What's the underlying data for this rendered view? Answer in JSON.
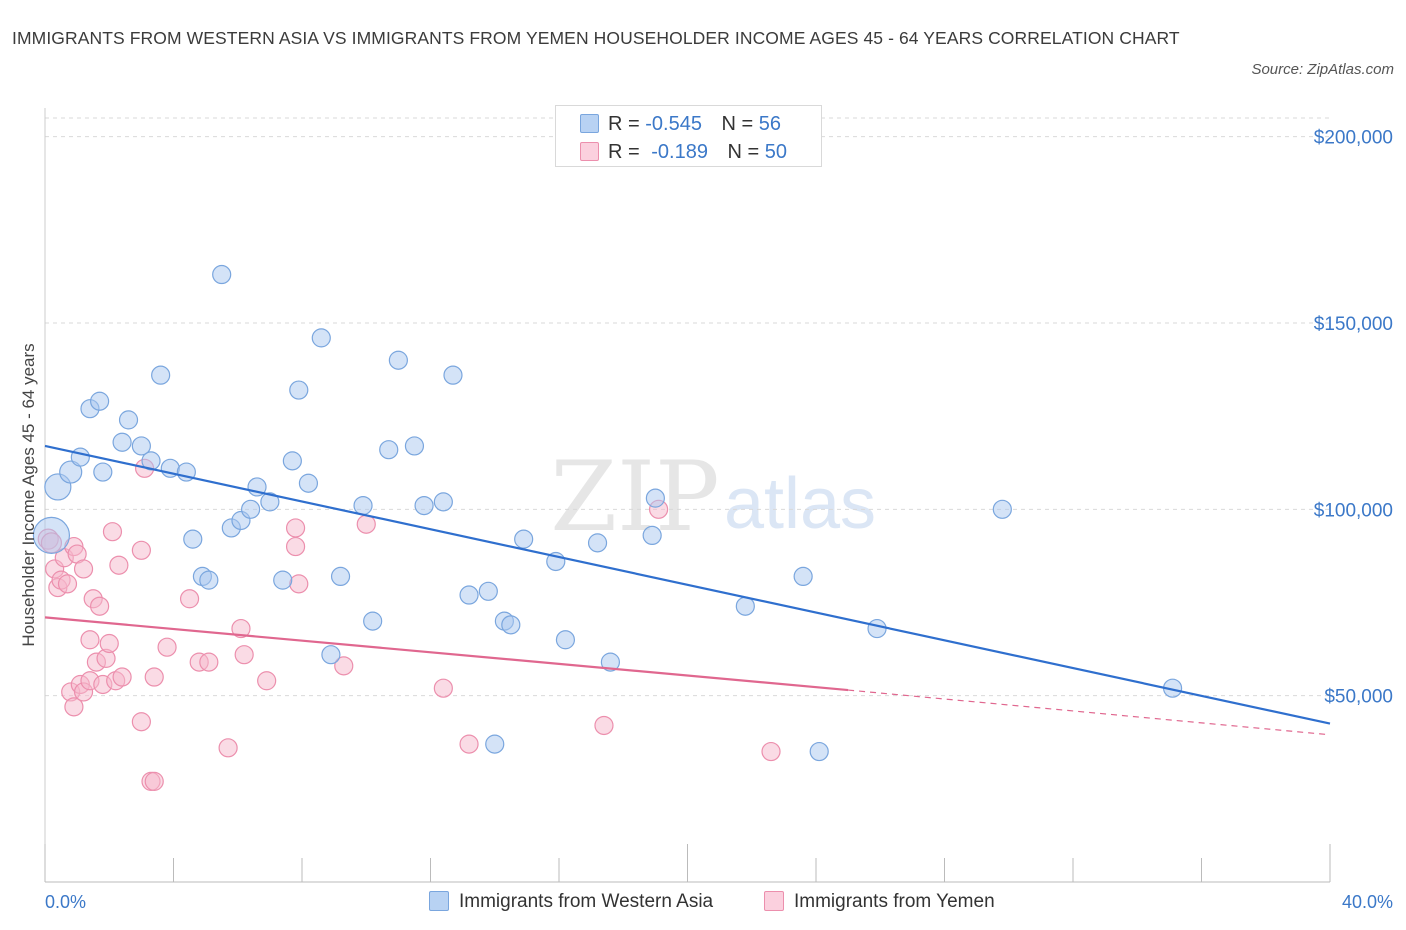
{
  "header": {
    "title": "IMMIGRANTS FROM WESTERN ASIA VS IMMIGRANTS FROM YEMEN HOUSEHOLDER INCOME AGES 45 - 64 YEARS CORRELATION CHART",
    "source": "Source: ZipAtlas.com"
  },
  "watermark": {
    "zip": "ZIP",
    "atlas": "atlas"
  },
  "legend": {
    "r_label": "R =",
    "n_label": "N =",
    "rows": [
      {
        "r": "-0.545",
        "n": "56"
      },
      {
        "r": "-0.189",
        "n": "50"
      }
    ]
  },
  "colors": {
    "blue_fill": "#a9c8f0",
    "blue_stroke": "#7aa6de",
    "blue_line": "#2f6fce",
    "pink_fill": "#f6b8cc",
    "pink_stroke": "#ec8fad",
    "pink_line": "#e0678f",
    "axis_label": "#3b78c8",
    "grid": "#d9d9d9"
  },
  "chart_data": {
    "type": "scatter",
    "ylabel": "Householder Income Ages 45 - 64 years",
    "xlim": [
      0,
      40
    ],
    "ylim": [
      0,
      205000
    ],
    "x_tick_labels": {
      "min": "0.0%",
      "max": "40.0%"
    },
    "y_ticks": [
      {
        "value": 50000,
        "label": "$50,000"
      },
      {
        "value": 100000,
        "label": "$100,000"
      },
      {
        "value": 150000,
        "label": "$150,000"
      },
      {
        "value": 200000,
        "label": "$200,000"
      }
    ],
    "grid": true,
    "legend_position": "bottom-center",
    "series": [
      {
        "name": "Immigrants from Western Asia",
        "color": "#a9c8f0",
        "trend": {
          "x1": 0.0,
          "y1": 117000,
          "x2": 40.0,
          "y2": 42500,
          "dashed_from": 40.0
        },
        "points": [
          [
            0.2,
            93000,
            18
          ],
          [
            0.4,
            106000,
            13
          ],
          [
            0.8,
            110000,
            11
          ],
          [
            1.1,
            114000,
            9
          ],
          [
            1.4,
            127000,
            9
          ],
          [
            1.7,
            129000,
            9
          ],
          [
            1.8,
            110000,
            9
          ],
          [
            2.4,
            118000,
            9
          ],
          [
            2.6,
            124000,
            9
          ],
          [
            3.0,
            117000,
            9
          ],
          [
            3.3,
            113000,
            9
          ],
          [
            3.6,
            136000,
            9
          ],
          [
            3.9,
            111000,
            9
          ],
          [
            4.4,
            110000,
            9
          ],
          [
            4.6,
            92000,
            9
          ],
          [
            4.9,
            82000,
            9
          ],
          [
            5.1,
            81000,
            9
          ],
          [
            5.5,
            163000,
            9
          ],
          [
            5.8,
            95000,
            9
          ],
          [
            6.1,
            97000,
            9
          ],
          [
            6.4,
            100000,
            9
          ],
          [
            6.6,
            106000,
            9
          ],
          [
            7.0,
            102000,
            9
          ],
          [
            7.4,
            81000,
            9
          ],
          [
            7.7,
            113000,
            9
          ],
          [
            7.9,
            132000,
            9
          ],
          [
            8.2,
            107000,
            9
          ],
          [
            8.6,
            146000,
            9
          ],
          [
            8.9,
            61000,
            9
          ],
          [
            9.2,
            82000,
            9
          ],
          [
            9.9,
            101000,
            9
          ],
          [
            10.2,
            70000,
            9
          ],
          [
            10.7,
            116000,
            9
          ],
          [
            11.0,
            140000,
            9
          ],
          [
            11.5,
            117000,
            9
          ],
          [
            11.8,
            101000,
            9
          ],
          [
            12.4,
            102000,
            9
          ],
          [
            12.7,
            136000,
            9
          ],
          [
            13.2,
            77000,
            9
          ],
          [
            13.8,
            78000,
            9
          ],
          [
            14.3,
            70000,
            9
          ],
          [
            14.0,
            37000,
            9
          ],
          [
            14.5,
            69000,
            9
          ],
          [
            14.9,
            92000,
            9
          ],
          [
            15.9,
            86000,
            9
          ],
          [
            16.2,
            65000,
            9
          ],
          [
            17.2,
            91000,
            9
          ],
          [
            17.6,
            59000,
            9
          ],
          [
            18.9,
            93000,
            9
          ],
          [
            19.0,
            103000,
            9
          ],
          [
            21.8,
            74000,
            9
          ],
          [
            23.6,
            82000,
            9
          ],
          [
            24.1,
            35000,
            9
          ],
          [
            25.9,
            68000,
            9
          ],
          [
            29.8,
            100000,
            9
          ],
          [
            35.1,
            52000,
            9
          ]
        ]
      },
      {
        "name": "Immigrants from Yemen",
        "color": "#f6b8cc",
        "trend": {
          "x1": 0.0,
          "y1": 71000,
          "x2": 25.0,
          "y2": 51500,
          "dashed_from": 25.0,
          "x_end": 40.0,
          "y_end": 39500
        },
        "points": [
          [
            0.1,
            92000,
            10
          ],
          [
            0.2,
            91000,
            10
          ],
          [
            0.3,
            84000,
            9
          ],
          [
            0.4,
            79000,
            9
          ],
          [
            0.5,
            81000,
            9
          ],
          [
            0.6,
            87000,
            9
          ],
          [
            0.7,
            80000,
            9
          ],
          [
            0.8,
            51000,
            9
          ],
          [
            0.9,
            90000,
            9
          ],
          [
            0.9,
            47000,
            9
          ],
          [
            1.0,
            88000,
            9
          ],
          [
            1.1,
            53000,
            9
          ],
          [
            1.2,
            51000,
            9
          ],
          [
            1.2,
            84000,
            9
          ],
          [
            1.4,
            54000,
            9
          ],
          [
            1.4,
            65000,
            9
          ],
          [
            1.5,
            76000,
            9
          ],
          [
            1.6,
            59000,
            9
          ],
          [
            1.7,
            74000,
            9
          ],
          [
            1.8,
            53000,
            9
          ],
          [
            1.9,
            60000,
            9
          ],
          [
            2.0,
            64000,
            9
          ],
          [
            2.1,
            94000,
            9
          ],
          [
            2.2,
            54000,
            9
          ],
          [
            2.3,
            85000,
            9
          ],
          [
            2.4,
            55000,
            9
          ],
          [
            3.0,
            43000,
            9
          ],
          [
            3.0,
            89000,
            9
          ],
          [
            3.1,
            111000,
            9
          ],
          [
            3.3,
            27000,
            9
          ],
          [
            3.4,
            27000,
            9
          ],
          [
            3.4,
            55000,
            9
          ],
          [
            3.8,
            63000,
            9
          ],
          [
            4.5,
            76000,
            9
          ],
          [
            4.8,
            59000,
            9
          ],
          [
            5.1,
            59000,
            9
          ],
          [
            5.7,
            36000,
            9
          ],
          [
            6.1,
            68000,
            9
          ],
          [
            6.2,
            61000,
            9
          ],
          [
            6.9,
            54000,
            9
          ],
          [
            7.8,
            90000,
            9
          ],
          [
            7.8,
            95000,
            9
          ],
          [
            7.9,
            80000,
            9
          ],
          [
            9.3,
            58000,
            9
          ],
          [
            10.0,
            96000,
            9
          ],
          [
            12.4,
            52000,
            9
          ],
          [
            13.2,
            37000,
            9
          ],
          [
            17.4,
            42000,
            9
          ],
          [
            19.1,
            100000,
            9
          ],
          [
            22.6,
            35000,
            9
          ]
        ]
      }
    ]
  }
}
